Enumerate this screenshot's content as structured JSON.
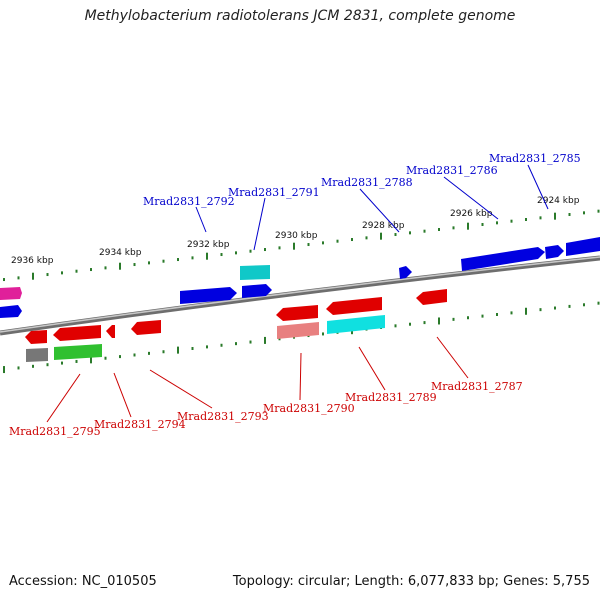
{
  "title": "Methylobacterium radiotolerans JCM 2831, complete genome",
  "footer": {
    "accession": "Accession: NC_010505",
    "summary": "Topology: circular; Length: 6,077,833 bp; Genes: 5,755"
  },
  "colors": {
    "top_label": "#0000cc",
    "bottom_label": "#cc0000",
    "tick": "#2a7a2a",
    "backbone": "#888888"
  },
  "coordinate_labels": [
    "2936 kbp",
    "2934 kbp",
    "2932 kbp",
    "2930 kbp",
    "2928 kbp",
    "2926 kbp",
    "2924 kbp"
  ],
  "top_strand_labels": [
    "Mrad2831_2792",
    "Mrad2831_2791",
    "Mrad2831_2788",
    "Mrad2831_2786",
    "Mrad2831_2785"
  ],
  "bottom_strand_labels": [
    "Mrad2831_2795",
    "Mrad2831_2794",
    "Mrad2831_2793",
    "Mrad2831_2790",
    "Mrad2831_2789",
    "Mrad2831_2787"
  ]
}
